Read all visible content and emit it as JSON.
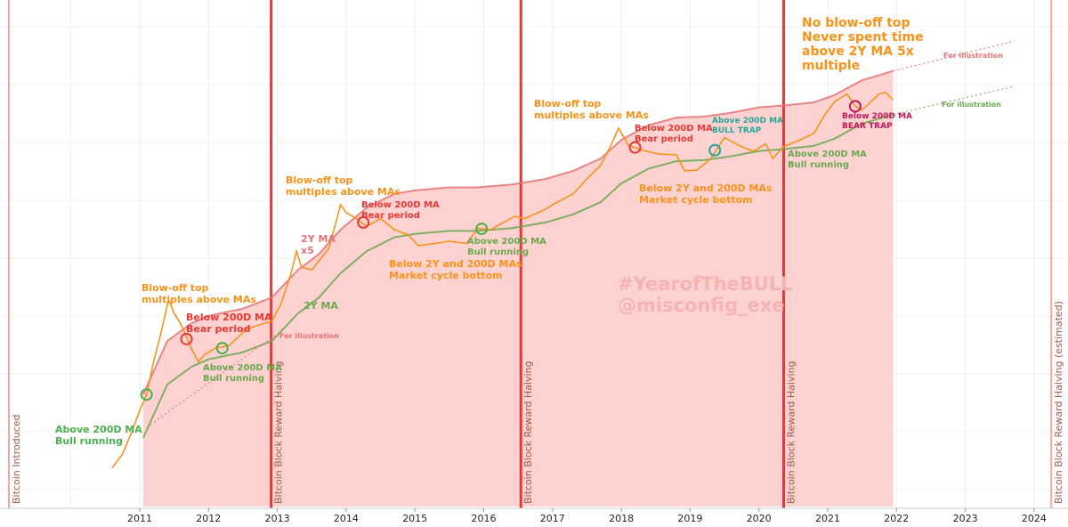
{
  "chart_data": {
    "type": "line",
    "xlabel": "",
    "ylabel": "",
    "x_range": [
      2009.9,
      2024.3
    ],
    "y_scale": "log",
    "y_labels_visible": false,
    "grid": true,
    "colors": {
      "price": "#f7931a",
      "ma2y": "#6aa84f",
      "ma2y_x5": "#e57373",
      "halving": "#e53935",
      "band_fill": "#fdd0cd",
      "green_text": "#4caf50",
      "red_text": "#e53935",
      "orange_text": "#f7931a",
      "cyan_text": "#26a69a",
      "magenta_text": "#c2185b"
    },
    "x_ticks": [
      "2011",
      "2012",
      "2013",
      "2014",
      "2015",
      "2016",
      "2017",
      "2018",
      "2019",
      "2020",
      "2021",
      "2022",
      "2023",
      "2024"
    ],
    "halvings": [
      {
        "date": 2009.02,
        "label": "Bitcoin Introduced",
        "color": "#f4a6a6"
      },
      {
        "date": 2012.91,
        "label": "Bitcoin Block Reward Halving",
        "color": "#e53935"
      },
      {
        "date": 2016.54,
        "label": "Bitcoin Block Reward Halving",
        "color": "#e53935"
      },
      {
        "date": 2020.36,
        "label": "Bitcoin Block Reward Halving",
        "color": "#e53935"
      },
      {
        "date": 2024.25,
        "label": "Bitcoin Block Reward Halving (estimated)",
        "color": "#f4a6a6"
      }
    ],
    "series": [
      {
        "name": "Price",
        "points": [
          [
            2010.6,
            0.06
          ],
          [
            2010.75,
            0.1
          ],
          [
            2010.9,
            0.25
          ],
          [
            2011.0,
            0.5
          ],
          [
            2011.1,
            0.9
          ],
          [
            2011.2,
            3
          ],
          [
            2011.3,
            8
          ],
          [
            2011.42,
            30
          ],
          [
            2011.5,
            18
          ],
          [
            2011.6,
            12
          ],
          [
            2011.75,
            5
          ],
          [
            2011.85,
            3
          ],
          [
            2011.95,
            4
          ],
          [
            2012.1,
            5
          ],
          [
            2012.3,
            5.5
          ],
          [
            2012.55,
            10
          ],
          [
            2012.75,
            12
          ],
          [
            2012.92,
            13.5
          ],
          [
            2013.05,
            25
          ],
          [
            2013.2,
            80
          ],
          [
            2013.28,
            180
          ],
          [
            2013.35,
            100
          ],
          [
            2013.5,
            90
          ],
          [
            2013.75,
            200
          ],
          [
            2013.92,
            1000
          ],
          [
            2014.0,
            750
          ],
          [
            2014.15,
            600
          ],
          [
            2014.3,
            450
          ],
          [
            2014.5,
            600
          ],
          [
            2014.7,
            400
          ],
          [
            2014.9,
            330
          ],
          [
            2015.05,
            220
          ],
          [
            2015.3,
            240
          ],
          [
            2015.5,
            260
          ],
          [
            2015.75,
            240
          ],
          [
            2015.92,
            420
          ],
          [
            2016.1,
            400
          ],
          [
            2016.45,
            650
          ],
          [
            2016.6,
            600
          ],
          [
            2016.9,
            850
          ],
          [
            2017.0,
            1000
          ],
          [
            2017.3,
            1500
          ],
          [
            2017.5,
            2600
          ],
          [
            2017.7,
            4300
          ],
          [
            2017.85,
            9000
          ],
          [
            2017.96,
            17000
          ],
          [
            2018.1,
            9000
          ],
          [
            2018.3,
            7500
          ],
          [
            2018.55,
            6500
          ],
          [
            2018.8,
            6300
          ],
          [
            2018.92,
            3500
          ],
          [
            2019.1,
            3600
          ],
          [
            2019.3,
            5500
          ],
          [
            2019.5,
            12000
          ],
          [
            2019.75,
            8500
          ],
          [
            2019.92,
            7200
          ],
          [
            2020.1,
            9500
          ],
          [
            2020.2,
            5500
          ],
          [
            2020.36,
            8600
          ],
          [
            2020.6,
            11000
          ],
          [
            2020.8,
            14000
          ],
          [
            2020.96,
            28000
          ],
          [
            2021.1,
            45000
          ],
          [
            2021.28,
            60000
          ],
          [
            2021.4,
            38000
          ],
          [
            2021.5,
            33000
          ],
          [
            2021.6,
            42000
          ],
          [
            2021.75,
            60000
          ],
          [
            2021.84,
            64000
          ],
          [
            2021.95,
            48000
          ]
        ]
      },
      {
        "name": "2Y MA",
        "points": [
          [
            2011.05,
            0.18
          ],
          [
            2011.4,
            1.3
          ],
          [
            2011.75,
            2.5
          ],
          [
            2012.0,
            3.3
          ],
          [
            2012.5,
            4.3
          ],
          [
            2012.92,
            6.5
          ],
          [
            2013.3,
            18
          ],
          [
            2013.6,
            32
          ],
          [
            2013.92,
            80
          ],
          [
            2014.3,
            180
          ],
          [
            2014.7,
            300
          ],
          [
            2015.0,
            340
          ],
          [
            2015.5,
            380
          ],
          [
            2015.9,
            380
          ],
          [
            2016.4,
            420
          ],
          [
            2016.9,
            520
          ],
          [
            2017.3,
            700
          ],
          [
            2017.7,
            1100
          ],
          [
            2018.0,
            2200
          ],
          [
            2018.4,
            3800
          ],
          [
            2018.8,
            5000
          ],
          [
            2019.2,
            5200
          ],
          [
            2019.6,
            6000
          ],
          [
            2020.0,
            7300
          ],
          [
            2020.4,
            7900
          ],
          [
            2020.8,
            8800
          ],
          [
            2021.1,
            11500
          ],
          [
            2021.5,
            20000
          ],
          [
            2021.95,
            28000
          ]
        ]
      },
      {
        "name": "2Y MA x5",
        "points": [
          [
            2011.05,
            0.9
          ],
          [
            2011.4,
            6.5
          ],
          [
            2011.75,
            12.5
          ],
          [
            2012.0,
            16.5
          ],
          [
            2012.5,
            21.5
          ],
          [
            2012.92,
            32.5
          ],
          [
            2013.3,
            90
          ],
          [
            2013.6,
            160
          ],
          [
            2013.92,
            400
          ],
          [
            2014.3,
            900
          ],
          [
            2014.7,
            1500
          ],
          [
            2015.0,
            1700
          ],
          [
            2015.5,
            1900
          ],
          [
            2015.9,
            1900
          ],
          [
            2016.4,
            2100
          ],
          [
            2016.9,
            2600
          ],
          [
            2017.3,
            3500
          ],
          [
            2017.7,
            5500
          ],
          [
            2018.0,
            11000
          ],
          [
            2018.4,
            19000
          ],
          [
            2018.8,
            25000
          ],
          [
            2019.2,
            26000
          ],
          [
            2019.6,
            30000
          ],
          [
            2020.0,
            36500
          ],
          [
            2020.4,
            39500
          ],
          [
            2020.8,
            44000
          ],
          [
            2021.1,
            57500
          ],
          [
            2021.5,
            100000
          ],
          [
            2021.95,
            140000
          ]
        ]
      }
    ],
    "markers": [
      {
        "date": 2011.1,
        "value": 0.9,
        "color": "#4caf50"
      },
      {
        "date": 2011.68,
        "value": 7,
        "color": "#e53935"
      },
      {
        "date": 2012.2,
        "value": 5,
        "color": "#4caf50"
      },
      {
        "date": 2014.25,
        "value": 520,
        "color": "#e53935"
      },
      {
        "date": 2015.97,
        "value": 410,
        "color": "#4caf50"
      },
      {
        "date": 2018.2,
        "value": 8300,
        "color": "#e53935"
      },
      {
        "date": 2019.36,
        "value": 7500,
        "color": "#26a69a"
      },
      {
        "date": 2021.4,
        "value": 38000,
        "color": "#c2185b"
      }
    ],
    "annotations": [
      {
        "lines": [
          "Above 200D MA",
          "Bull running"
        ],
        "color": "#4caf50",
        "size": 11
      },
      {
        "lines": [
          "Blow-off top",
          "multiples above MAs"
        ],
        "color": "#f7931a",
        "size": 11
      },
      {
        "lines": [
          "Below 200D MA",
          "Bear period"
        ],
        "color": "#e53935",
        "size": 11
      },
      {
        "lines": [
          "Above 200D MA",
          "Bull running"
        ],
        "color": "#6aa84f",
        "size": 10
      },
      {
        "lines": [
          "Blow-off top",
          "multiples above MAs"
        ],
        "color": "#f7931a",
        "size": 11
      },
      {
        "lines": [
          "Below 200D MA",
          "Bear period"
        ],
        "color": "#e53935",
        "size": 10
      },
      {
        "lines": [
          "2Y MA",
          "x5"
        ],
        "color": "#e57373",
        "size": 11
      },
      {
        "lines": [
          "2Y MA"
        ],
        "color": "#6aa84f",
        "size": 11
      },
      {
        "lines": [
          "Above 200D MA",
          "Bull running"
        ],
        "color": "#6aa84f",
        "size": 10
      },
      {
        "lines": [
          "Below 2Y and 200D MAs",
          "Market cycle bottom"
        ],
        "color": "#f7931a",
        "size": 11
      },
      {
        "lines": [
          "Blow-off top",
          "multiples above MAs"
        ],
        "color": "#f7931a",
        "size": 11
      },
      {
        "lines": [
          "Below 200D MA",
          "Bear period"
        ],
        "color": "#e53935",
        "size": 10
      },
      {
        "lines": [
          "Above 200D MA",
          "BULL TRAP"
        ],
        "color": "#26a69a",
        "size": 9
      },
      {
        "lines": [
          "Above 200D MA",
          "Bull running"
        ],
        "color": "#6aa84f",
        "size": 10
      },
      {
        "lines": [
          "Below 2Y and 200D MAs",
          "Market cycle bottom"
        ],
        "color": "#f7931a",
        "size": 11
      },
      {
        "lines": [
          "Below 200D MA",
          "BEAR TRAP"
        ],
        "color": "#c2185b",
        "size": 9
      },
      {
        "lines": [
          "No blow-off top",
          "Never spent time",
          "above 2Y MA 5x",
          "multiple"
        ],
        "color": "#f7931a",
        "size": 14
      },
      {
        "lines": [
          "For illustration"
        ],
        "color": "#e57373",
        "size": 8
      },
      {
        "lines": [
          "For illustration"
        ],
        "color": "#e57373",
        "size": 8
      },
      {
        "lines": [
          "For illustration"
        ],
        "color": "#6aa84f",
        "size": 8
      }
    ],
    "watermark": [
      "#YearofTheBULL",
      "@misconfig_exe"
    ]
  }
}
